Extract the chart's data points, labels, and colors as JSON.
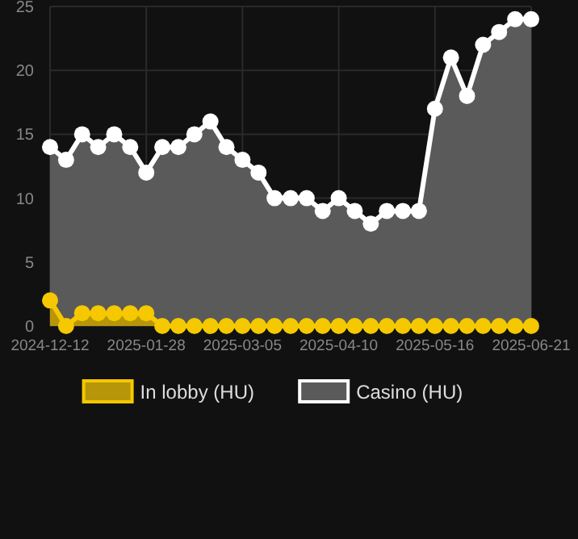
{
  "chart_data": {
    "type": "area",
    "categories": [
      "2024-12-12",
      null,
      null,
      null,
      null,
      null,
      "2025-01-28",
      null,
      null,
      null,
      null,
      null,
      "2025-03-05",
      null,
      null,
      null,
      null,
      null,
      "2025-04-10",
      null,
      null,
      null,
      null,
      null,
      "2025-05-16",
      null,
      null,
      null,
      null,
      null,
      "2025-06-21"
    ],
    "series": [
      {
        "name": "In lobby (HU)",
        "color": "#f5c800",
        "values": [
          2,
          0,
          1,
          1,
          1,
          1,
          1,
          0,
          0,
          0,
          0,
          0,
          0,
          0,
          0,
          0,
          0,
          0,
          0,
          0,
          0,
          0,
          0,
          0,
          0,
          0,
          0,
          0,
          0,
          0,
          0
        ]
      },
      {
        "name": "Casino (HU)",
        "color": "#ffffff",
        "values": [
          14,
          13,
          15,
          14,
          15,
          14,
          12,
          14,
          14,
          15,
          16,
          14,
          13,
          12,
          10,
          10,
          10,
          9,
          10,
          9,
          8,
          9,
          9,
          9,
          17,
          21,
          18,
          22,
          23,
          24,
          24
        ]
      }
    ],
    "ylim": [
      0,
      25
    ],
    "yticks": [
      0,
      5,
      10,
      15,
      20,
      25
    ],
    "grid": true,
    "legend": "bottom",
    "marker": "circle"
  }
}
